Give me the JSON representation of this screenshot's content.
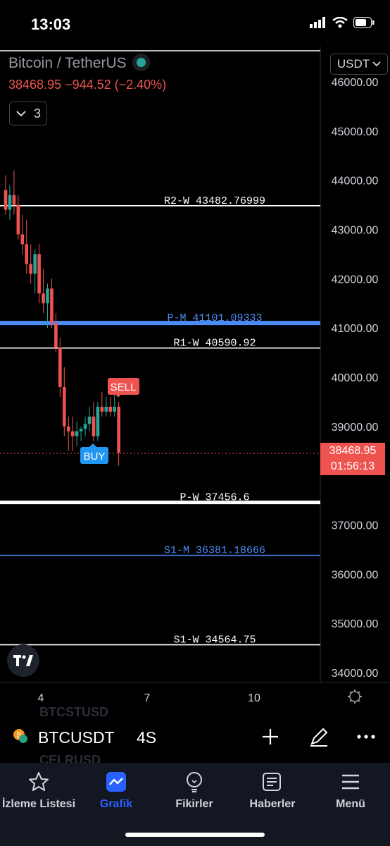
{
  "status_bar": {
    "time": "13:03"
  },
  "header": {
    "symbol": "Bitcoin / TetherUS",
    "price_change": "38468.95 −944.52 (−2.40%)",
    "indicators_count": "3",
    "currency": "USDT"
  },
  "price_axis": {
    "ticks": [
      "46000.00",
      "45000.00",
      "44000.00",
      "43000.00",
      "42000.00",
      "41000.00",
      "40000.00",
      "39000.00",
      "37000.00",
      "36000.00",
      "35000.00",
      "34000.00"
    ],
    "current_price": "38468.95",
    "countdown": "01:56:13"
  },
  "time_axis": {
    "ticks": [
      "4",
      "7",
      "10"
    ]
  },
  "levels": [
    {
      "label": "R2-W 43482.76999",
      "value": 43482.77,
      "color": "#ffffff",
      "thick": false
    },
    {
      "label": "P-M 41101.09333",
      "value": 41101.09,
      "color": "#4c8cf5",
      "thick": true
    },
    {
      "label": "R1-W 40590.92",
      "value": 40590.92,
      "color": "#ffffff",
      "thick": false
    },
    {
      "label": "P-W 37456.6",
      "value": 37456.6,
      "color": "#ffffff",
      "thick": true
    },
    {
      "label": "S1-M 36381.18666",
      "value": 36381.19,
      "color": "#4c8cf5",
      "thick": false
    },
    {
      "label": "S1-W 34564.75",
      "value": 34564.75,
      "color": "#ffffff",
      "thick": false
    }
  ],
  "signals": {
    "sell": "SELL",
    "buy": "BUY"
  },
  "chart_data": {
    "type": "candlestick",
    "y_range": [
      33800,
      46400
    ],
    "candles": [
      {
        "o": 43800,
        "h": 44100,
        "l": 43300,
        "c": 43400
      },
      {
        "o": 43400,
        "h": 43900,
        "l": 43200,
        "c": 43700
      },
      {
        "o": 43700,
        "h": 44200,
        "l": 43300,
        "c": 43500
      },
      {
        "o": 43500,
        "h": 43700,
        "l": 42800,
        "c": 42900
      },
      {
        "o": 42900,
        "h": 43300,
        "l": 42500,
        "c": 42700
      },
      {
        "o": 42700,
        "h": 43200,
        "l": 42100,
        "c": 42300
      },
      {
        "o": 42300,
        "h": 42700,
        "l": 41900,
        "c": 42100
      },
      {
        "o": 42100,
        "h": 42600,
        "l": 41700,
        "c": 42500
      },
      {
        "o": 42500,
        "h": 42700,
        "l": 41500,
        "c": 41700
      },
      {
        "o": 41700,
        "h": 42200,
        "l": 41300,
        "c": 41500
      },
      {
        "o": 41500,
        "h": 41900,
        "l": 41000,
        "c": 41800
      },
      {
        "o": 41800,
        "h": 42000,
        "l": 41000,
        "c": 41100
      },
      {
        "o": 41100,
        "h": 41300,
        "l": 40500,
        "c": 40600
      },
      {
        "o": 40600,
        "h": 40800,
        "l": 39600,
        "c": 39800
      },
      {
        "o": 39800,
        "h": 40200,
        "l": 38800,
        "c": 39000
      },
      {
        "o": 39000,
        "h": 39200,
        "l": 38500,
        "c": 38900
      },
      {
        "o": 38900,
        "h": 39200,
        "l": 38500,
        "c": 38800
      },
      {
        "o": 38800,
        "h": 39100,
        "l": 38600,
        "c": 38900
      },
      {
        "o": 38900,
        "h": 39000,
        "l": 38700,
        "c": 38950
      },
      {
        "o": 38950,
        "h": 39200,
        "l": 38800,
        "c": 39050
      },
      {
        "o": 39050,
        "h": 39400,
        "l": 38900,
        "c": 39200
      },
      {
        "o": 39200,
        "h": 39500,
        "l": 38700,
        "c": 38800
      },
      {
        "o": 38800,
        "h": 39500,
        "l": 38700,
        "c": 39400
      },
      {
        "o": 39400,
        "h": 39700,
        "l": 39200,
        "c": 39300
      },
      {
        "o": 39300,
        "h": 39600,
        "l": 39200,
        "c": 39400
      },
      {
        "o": 39400,
        "h": 39600,
        "l": 39200,
        "c": 39300
      },
      {
        "o": 39300,
        "h": 39700,
        "l": 39200,
        "c": 39400
      },
      {
        "o": 39400,
        "h": 39500,
        "l": 38200,
        "c": 38469
      }
    ]
  },
  "symbol_bar": {
    "ghost_above": "BTCSTUSD",
    "ticker": "BTCUSDT",
    "interval": "4S",
    "ghost_below": "CELRUSD"
  },
  "nav": {
    "watchlist": "İzleme Listesi",
    "chart": "Grafik",
    "ideas": "Fikirler",
    "news": "Haberler",
    "menu": "Menü"
  }
}
